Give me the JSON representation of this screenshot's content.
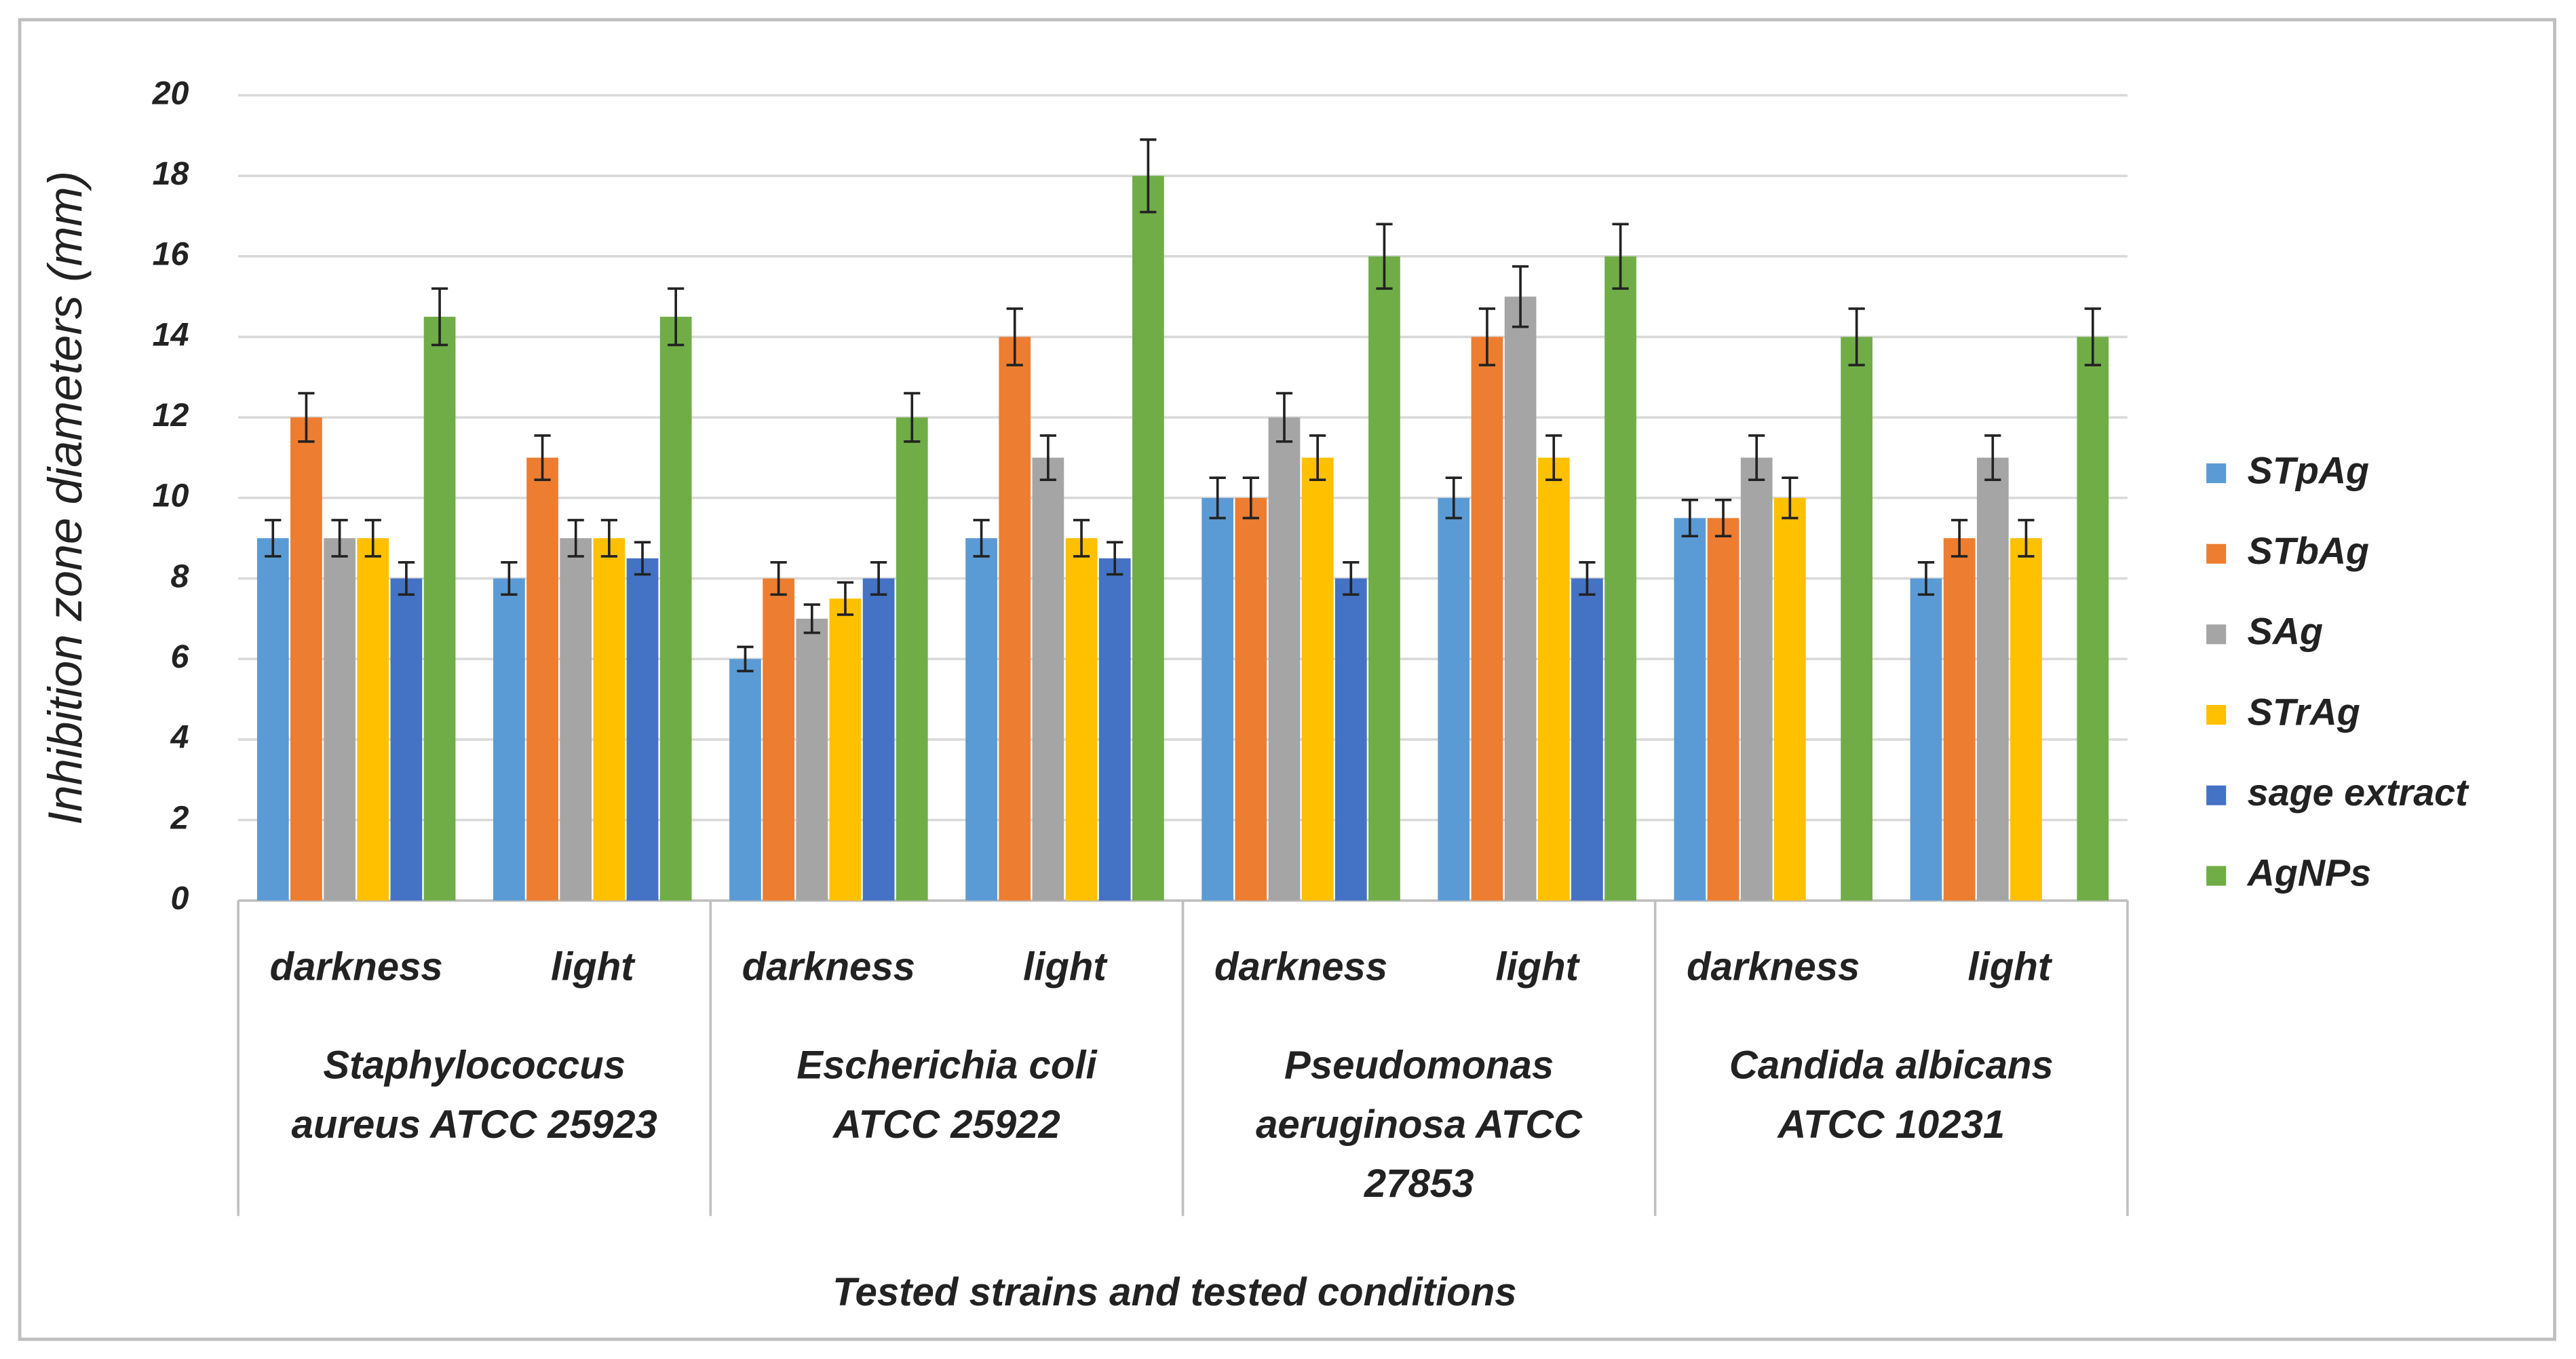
{
  "chart_data": {
    "type": "bar",
    "y_label": "Inhibition zone diameters (mm)",
    "x_label": "Tested strains and tested conditions",
    "groups": [
      {
        "label_lines": [
          "Staphylococcus",
          "aureus ATCC 25923"
        ],
        "categories": [
          "darkness",
          "light"
        ]
      },
      {
        "label_lines": [
          "Escherichia coli",
          "ATCC 25922"
        ],
        "categories": [
          "darkness",
          "light"
        ]
      },
      {
        "label_lines": [
          "Pseudomonas",
          "aeruginosa ATCC",
          "27853"
        ],
        "categories": [
          "darkness",
          "light"
        ]
      },
      {
        "label_lines": [
          "Candida albicans",
          "ATCC 10231"
        ],
        "categories": [
          "darkness",
          "light"
        ]
      }
    ],
    "series": [
      {
        "name": "STpAg",
        "color": "#5b9bd5",
        "values": [
          9,
          8,
          6,
          9,
          10,
          10,
          9.5,
          8
        ],
        "errors": [
          0.45,
          0.4,
          0.3,
          0.45,
          0.5,
          0.5,
          0.45,
          0.4
        ]
      },
      {
        "name": "STbAg",
        "color": "#ed7d31",
        "values": [
          12,
          11,
          8,
          14,
          10,
          14,
          9.5,
          9
        ],
        "errors": [
          0.6,
          0.55,
          0.4,
          0.7,
          0.5,
          0.7,
          0.45,
          0.45
        ]
      },
      {
        "name": "SAg",
        "color": "#a5a5a5",
        "values": [
          9,
          9,
          7,
          11,
          12,
          15,
          11,
          11
        ],
        "errors": [
          0.45,
          0.45,
          0.35,
          0.55,
          0.6,
          0.75,
          0.55,
          0.55
        ]
      },
      {
        "name": "STrAg",
        "color": "#ffc000",
        "values": [
          9,
          9,
          7.5,
          9,
          11,
          11,
          10,
          9
        ],
        "errors": [
          0.45,
          0.45,
          0.4,
          0.45,
          0.55,
          0.55,
          0.5,
          0.45
        ]
      },
      {
        "name": "sage extract",
        "color": "#4472c4",
        "values": [
          8,
          8.5,
          8,
          8.5,
          8,
          8,
          null,
          null
        ],
        "errors": [
          0.4,
          0.4,
          0.4,
          0.4,
          0.4,
          0.4,
          null,
          null
        ]
      },
      {
        "name": "AgNPs",
        "color": "#70ad47",
        "values": [
          14.5,
          14.5,
          12,
          18,
          16,
          16,
          14,
          14
        ],
        "errors": [
          0.7,
          0.7,
          0.6,
          0.9,
          0.8,
          0.8,
          0.7,
          0.7
        ]
      }
    ],
    "ylim": [
      0,
      20
    ],
    "yticks": [
      0,
      2,
      4,
      6,
      8,
      10,
      12,
      14,
      16,
      18,
      20
    ],
    "grid": true,
    "legend": "right"
  }
}
